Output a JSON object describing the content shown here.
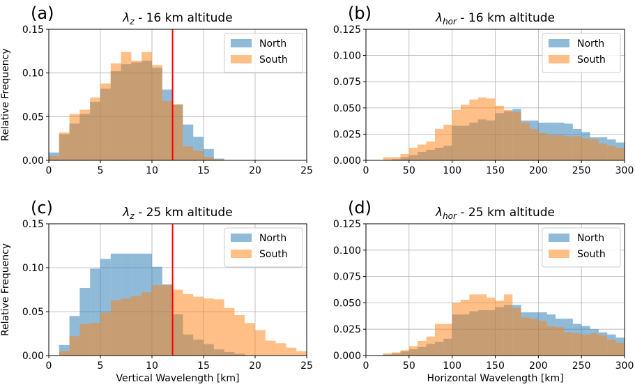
{
  "colors": {
    "north": "#1f77b4",
    "south": "#ff7f0e",
    "overlap": "#bf9270",
    "threshold": "#ff0000",
    "grid": "#b0b0b0"
  },
  "chart_data": [
    {
      "type": "bar",
      "panel_label": "(a)",
      "title": "λz - 16 km altitude",
      "title_parts": {
        "symbol": "λ",
        "sub": "z",
        "rest": " - 16 km altitude"
      },
      "xlabel": "",
      "ylabel": "Relative Frequency",
      "xlim": [
        0,
        25
      ],
      "ylim": [
        0,
        0.15
      ],
      "xticks": [
        "0",
        "5",
        "10",
        "15",
        "20",
        "25"
      ],
      "yticks": [
        "0.00",
        "0.05",
        "0.10",
        "0.15"
      ],
      "bin_start": 0,
      "bin_width": 1,
      "threshold_x": 12,
      "grid": true,
      "legend_position": "top-right",
      "series": [
        {
          "name": "North",
          "values": [
            0.009,
            0.03,
            0.042,
            0.053,
            0.067,
            0.082,
            0.102,
            0.11,
            0.112,
            0.114,
            0.106,
            0.081,
            0.064,
            0.041,
            0.027,
            0.013,
            0.002
          ]
        },
        {
          "name": "South",
          "values": [
            0.005,
            0.032,
            0.053,
            0.058,
            0.072,
            0.088,
            0.111,
            0.124,
            0.114,
            0.124,
            0.109,
            0.068,
            0.064,
            0.016,
            0.011,
            0.004,
            0.001
          ]
        }
      ]
    },
    {
      "type": "bar",
      "panel_label": "(b)",
      "title": "λhor - 16 km altitude",
      "title_parts": {
        "symbol": "λ",
        "sub": "hor",
        "rest": " - 16 km altitude"
      },
      "xlabel": "",
      "ylabel": "",
      "xlim": [
        0,
        300
      ],
      "ylim": [
        0,
        0.125
      ],
      "xticks": [
        "0",
        "50",
        "100",
        "150",
        "200",
        "250",
        "300"
      ],
      "yticks": [
        "0.000",
        "0.025",
        "0.050",
        "0.075",
        "0.100",
        "0.125"
      ],
      "bin_start": 0,
      "bin_width": 10,
      "threshold_x": null,
      "grid": true,
      "legend_position": "top-right",
      "series": [
        {
          "name": "North",
          "values": [
            0.0,
            0.0,
            0.0,
            0.001,
            0.003,
            0.005,
            0.008,
            0.01,
            0.012,
            0.014,
            0.033,
            0.033,
            0.036,
            0.039,
            0.038,
            0.045,
            0.047,
            0.049,
            0.038,
            0.038,
            0.036,
            0.036,
            0.036,
            0.035,
            0.03,
            0.027,
            0.022,
            0.022,
            0.02,
            0.017
          ]
        },
        {
          "name": "South",
          "values": [
            0.0,
            0.0,
            0.003,
            0.003,
            0.006,
            0.012,
            0.015,
            0.018,
            0.03,
            0.034,
            0.048,
            0.053,
            0.058,
            0.06,
            0.059,
            0.052,
            0.048,
            0.046,
            0.036,
            0.03,
            0.026,
            0.024,
            0.024,
            0.023,
            0.023,
            0.021,
            0.02,
            0.016,
            0.014,
            0.012
          ]
        }
      ]
    },
    {
      "type": "bar",
      "panel_label": "(c)",
      "title": "λz - 25 km altitude",
      "title_parts": {
        "symbol": "λ",
        "sub": "z",
        "rest": " - 25 km altitude"
      },
      "xlabel": "Vertical Wavelength [km]",
      "ylabel": "Relative Frequency",
      "xlim": [
        0,
        25
      ],
      "ylim": [
        0,
        0.15
      ],
      "xticks": [
        "0",
        "5",
        "10",
        "15",
        "20",
        "25"
      ],
      "yticks": [
        "0.00",
        "0.05",
        "0.10",
        "0.15"
      ],
      "bin_start": 0,
      "bin_width": 1,
      "threshold_x": 12,
      "grid": true,
      "legend_position": "top-right",
      "series": [
        {
          "name": "North",
          "values": [
            0.0,
            0.012,
            0.045,
            0.077,
            0.099,
            0.11,
            0.116,
            0.116,
            0.116,
            0.116,
            0.101,
            0.081,
            0.047,
            0.024,
            0.018,
            0.013,
            0.007,
            0.004,
            0.002,
            0.0,
            0.0,
            0.0,
            0.0,
            0.0,
            0.0
          ]
        },
        {
          "name": "South",
          "values": [
            0.0,
            0.005,
            0.022,
            0.036,
            0.037,
            0.049,
            0.063,
            0.065,
            0.068,
            0.072,
            0.08,
            0.08,
            0.075,
            0.07,
            0.067,
            0.065,
            0.064,
            0.054,
            0.046,
            0.037,
            0.029,
            0.017,
            0.014,
            0.009,
            0.005
          ]
        }
      ]
    },
    {
      "type": "bar",
      "panel_label": "(d)",
      "title": "λhor - 25 km altitude",
      "title_parts": {
        "symbol": "λ",
        "sub": "hor",
        "rest": " - 25 km altitude"
      },
      "xlabel": "Horizontal Wavelength [km]",
      "ylabel": "",
      "xlim": [
        0,
        300
      ],
      "ylim": [
        0,
        0.125
      ],
      "xticks": [
        "0",
        "50",
        "100",
        "150",
        "200",
        "250",
        "300"
      ],
      "yticks": [
        "0.000",
        "0.025",
        "0.050",
        "0.075",
        "0.100",
        "0.125"
      ],
      "bin_start": 0,
      "bin_width": 10,
      "threshold_x": null,
      "grid": true,
      "legend_position": "top-right",
      "series": [
        {
          "name": "North",
          "values": [
            0.0,
            0.0,
            0.001,
            0.002,
            0.004,
            0.006,
            0.008,
            0.011,
            0.013,
            0.016,
            0.039,
            0.039,
            0.042,
            0.043,
            0.043,
            0.046,
            0.048,
            0.048,
            0.041,
            0.041,
            0.041,
            0.039,
            0.035,
            0.035,
            0.03,
            0.028,
            0.025,
            0.022,
            0.02,
            0.017
          ]
        },
        {
          "name": "South",
          "values": [
            0.0,
            0.0,
            0.002,
            0.003,
            0.005,
            0.009,
            0.014,
            0.018,
            0.03,
            0.03,
            0.05,
            0.053,
            0.058,
            0.058,
            0.055,
            0.052,
            0.058,
            0.045,
            0.036,
            0.035,
            0.033,
            0.028,
            0.027,
            0.022,
            0.021,
            0.02,
            0.021,
            0.019,
            0.015,
            0.012
          ]
        }
      ]
    }
  ]
}
